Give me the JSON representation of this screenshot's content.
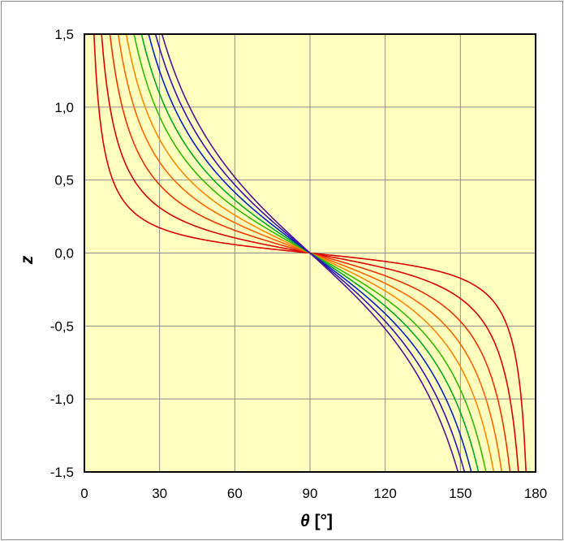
{
  "chart_data": {
    "type": "line",
    "xlabel_symbol": "θ",
    "xlabel_unit": "[°]",
    "ylabel": "z",
    "xlim": [
      0,
      180
    ],
    "ylim": [
      -1.5,
      1.5
    ],
    "x_ticks": [
      0,
      30,
      60,
      90,
      120,
      150,
      180
    ],
    "x_tick_labels": [
      "0",
      "30",
      "60",
      "90",
      "120",
      "150",
      "180"
    ],
    "y_ticks": [
      1.5,
      1.0,
      0.5,
      0.0,
      -0.5,
      -1.0,
      -1.5
    ],
    "y_tick_labels": [
      "1,5",
      "1,0",
      "0,5",
      "0,0",
      "-0,5",
      "-1,0",
      "-1,5"
    ],
    "grid": true,
    "plot_background": "#ffffc0",
    "curve_family": "z = k · cot(θ)",
    "series": [
      {
        "k": 0.1,
        "color": "#dd0000"
      },
      {
        "k": 0.18,
        "color": "#dd0000"
      },
      {
        "k": 0.27,
        "color": "#ee3300"
      },
      {
        "k": 0.36,
        "color": "#ff6600"
      },
      {
        "k": 0.45,
        "color": "#ff8800"
      },
      {
        "k": 0.54,
        "color": "#33bb00"
      },
      {
        "k": 0.63,
        "color": "#00aa22"
      },
      {
        "k": 0.72,
        "color": "#0022cc"
      },
      {
        "k": 0.81,
        "color": "#3311bb"
      },
      {
        "k": 0.9,
        "color": "#551199"
      }
    ]
  }
}
